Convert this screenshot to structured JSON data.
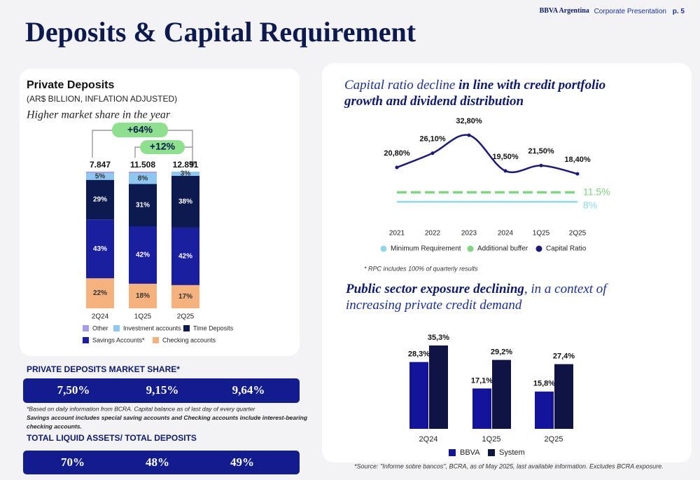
{
  "header": {
    "brand": "BBVA Argentina",
    "section": "Corporate Presentation",
    "page": "p. 5",
    "title": "Deposits & Capital Requirement"
  },
  "chart_data": [
    {
      "type": "stacked_bar",
      "title": "Private Deposits",
      "subtitle": "(AR$ BILLION, INFLATION ADJUSTED)",
      "annotation": "Higher market share in the year",
      "growth_labels": [
        "+64%",
        "+12%"
      ],
      "categories": [
        "2Q24",
        "1Q25",
        "2Q25"
      ],
      "totals": {
        "values": [
          7847,
          11508,
          12891
        ],
        "value_labels": [
          "7.847",
          "11.508",
          "12.891"
        ]
      },
      "ylim": [
        0,
        100
      ],
      "series": [
        {
          "name": "Other",
          "color": "#a99be8",
          "values": [
            1,
            1,
            0
          ]
        },
        {
          "name": "Investment accounts",
          "color": "#8ec8f0",
          "values": [
            5,
            8,
            3
          ],
          "value_labels": [
            "5%",
            "8%",
            "3%"
          ]
        },
        {
          "name": "Time Deposits",
          "color": "#0d1a4f",
          "values": [
            29,
            31,
            38
          ],
          "value_labels": [
            "29%",
            "31%",
            "38%"
          ]
        },
        {
          "name": "Savings Accounts*",
          "color": "#1a1fa0",
          "values": [
            43,
            42,
            42
          ],
          "value_labels": [
            "43%",
            "42%",
            "42%"
          ]
        },
        {
          "name": "Checking accounts",
          "color": "#f5b17e",
          "values": [
            22,
            18,
            17
          ],
          "value_labels": [
            "22%",
            "18%",
            "17%"
          ]
        }
      ]
    },
    {
      "type": "line",
      "title": "Capital ratio decline",
      "title_emphasis": "in line with credit portfolio growth and dividend distribution",
      "categories": [
        "2021",
        "2022",
        "2023",
        "2024",
        "1Q25",
        "2Q25"
      ],
      "ylim": [
        0,
        40
      ],
      "series": [
        {
          "name": "Minimum Requirement",
          "color": "#8fd8e8",
          "values": [
            8,
            8,
            8,
            8,
            8,
            8
          ],
          "value_labels": [
            null,
            null,
            null,
            null,
            null,
            "8%"
          ]
        },
        {
          "name": "Additional buffer",
          "color": "#7ed67e",
          "dash": true,
          "values": [
            11.5,
            11.5,
            11.5,
            11.5,
            11.5,
            11.5
          ],
          "value_labels": [
            null,
            null,
            null,
            null,
            null,
            "11.5%"
          ]
        },
        {
          "name": "Capital Ratio",
          "color": "#1a1a7a",
          "values": [
            20.8,
            26.1,
            32.8,
            19.5,
            21.5,
            18.4
          ],
          "value_labels": [
            "20,80%",
            "26,10%",
            "32,80%",
            "19,50%",
            "21,50%",
            "18,40%"
          ]
        }
      ],
      "note": "* RPC includes 100% of quarterly results"
    },
    {
      "type": "bar",
      "title_emphasis": "Public sector exposure declining",
      "title": ", in a context of increasing private credit demand",
      "categories": [
        "2Q24",
        "1Q25",
        "2Q25"
      ],
      "ylim": [
        0,
        40
      ],
      "series": [
        {
          "name": "BBVA",
          "color": "#14149a",
          "values": [
            28.3,
            17.1,
            15.8
          ],
          "value_labels": [
            "28,3%",
            "17,1%",
            "15,8%"
          ]
        },
        {
          "name": "System",
          "color": "#0f1445",
          "values": [
            35.3,
            29.2,
            27.4
          ],
          "value_labels": [
            "35,3%",
            "29,2%",
            "27,4%"
          ]
        }
      ],
      "note": "*Source: \"Informe sobre bancos\", BCRA, as of  May 2025, last available information. Excludes BCRA exposure."
    }
  ],
  "market_share": {
    "title": "PRIVATE DEPOSITS  MARKET SHARE*",
    "values": [
      "7,50%",
      "9,15%",
      "9,64%"
    ]
  },
  "footnotes": [
    "*Based on daily information from BCRA. Capital balance as of last day of every quarter",
    "Savings account includes special saving accounts and Checking accounts include interest-bearing",
    "checking accounts."
  ],
  "liquid_assets": {
    "title": "TOTAL LIQUID ASSETS/ TOTAL DEPOSITS",
    "values": [
      "70%",
      "48%",
      "49%"
    ]
  }
}
